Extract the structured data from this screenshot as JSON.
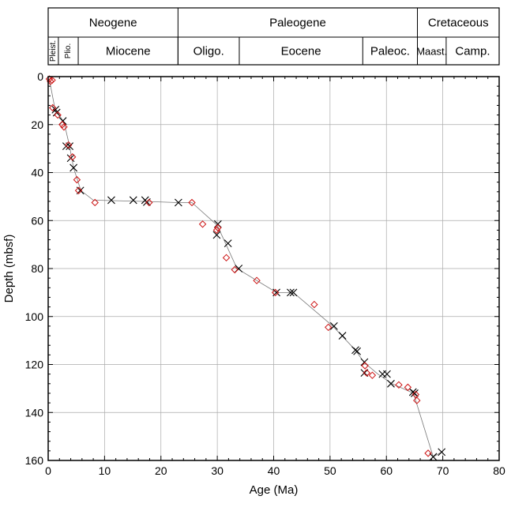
{
  "timescale": {
    "periods": [
      {
        "name": "Neogene",
        "start": 0,
        "end": 23.03
      },
      {
        "name": "Paleogene",
        "start": 23.03,
        "end": 65.5
      },
      {
        "name": "Cretaceous",
        "start": 65.5,
        "end": 80
      }
    ],
    "epochs": [
      {
        "name": "Pleist.",
        "start": 0,
        "end": 1.81,
        "vertical": true
      },
      {
        "name": "Plio.",
        "start": 1.81,
        "end": 5.33,
        "vertical": true
      },
      {
        "name": "Miocene",
        "start": 5.33,
        "end": 23.03
      },
      {
        "name": "Oligo.",
        "start": 23.03,
        "end": 33.9
      },
      {
        "name": "Eocene",
        "start": 33.9,
        "end": 55.8
      },
      {
        "name": "Paleoc.",
        "start": 55.8,
        "end": 65.5
      },
      {
        "name": "Maast.",
        "start": 65.5,
        "end": 70.6
      },
      {
        "name": "Camp.",
        "start": 70.6,
        "end": 80
      }
    ]
  },
  "chart_data": {
    "type": "scatter",
    "xlabel": "Age (Ma)",
    "ylabel": "Depth (mbsf)",
    "xlim": [
      0,
      80
    ],
    "ylim": [
      0,
      160
    ],
    "y_inverted": true,
    "grid": true,
    "xticks": [
      0,
      10,
      20,
      30,
      40,
      50,
      60,
      70,
      80
    ],
    "yticks": [
      0,
      20,
      40,
      60,
      80,
      100,
      120,
      140,
      160
    ],
    "colors": {
      "x_markers": "#000000",
      "diamond_markers": "#cc1111",
      "trend_line": "#777777"
    },
    "trend_line": [
      [
        0.2,
        1
      ],
      [
        1.2,
        13.5
      ],
      [
        2.8,
        19
      ],
      [
        3.8,
        29
      ],
      [
        4.5,
        38
      ],
      [
        5.8,
        47.5
      ],
      [
        8,
        51.5
      ],
      [
        17,
        52
      ],
      [
        23,
        52.5
      ],
      [
        25.5,
        52.5
      ],
      [
        30,
        62
      ],
      [
        33.5,
        80
      ],
      [
        40.5,
        90
      ],
      [
        43.5,
        90
      ],
      [
        50.5,
        104
      ],
      [
        54.5,
        114
      ],
      [
        56,
        119
      ],
      [
        58.5,
        124
      ],
      [
        61,
        128
      ],
      [
        64.8,
        132
      ],
      [
        68.3,
        158.5
      ],
      [
        69.8,
        156.5
      ]
    ],
    "series": [
      {
        "marker": "x",
        "points": [
          [
            1.3,
            13.8
          ],
          [
            1.5,
            15
          ],
          [
            2.6,
            18.5
          ],
          [
            3.2,
            29
          ],
          [
            3.8,
            29
          ],
          [
            4.0,
            34
          ],
          [
            4.5,
            38
          ],
          [
            5.7,
            47.5
          ],
          [
            11.2,
            51.5
          ],
          [
            15.1,
            51.5
          ],
          [
            17.2,
            51.5
          ],
          [
            17.5,
            52.3
          ],
          [
            23.1,
            52.5
          ],
          [
            30.1,
            61.5
          ],
          [
            29.9,
            66
          ],
          [
            31.9,
            69.5
          ],
          [
            33.8,
            80
          ],
          [
            40.5,
            90
          ],
          [
            43,
            90
          ],
          [
            43.5,
            90
          ],
          [
            50.7,
            104
          ],
          [
            52.2,
            108
          ],
          [
            54.5,
            114
          ],
          [
            54.8,
            114.5
          ],
          [
            56.1,
            119
          ],
          [
            56.1,
            123.5
          ],
          [
            59.3,
            124
          ],
          [
            60.1,
            124
          ],
          [
            60.8,
            128
          ],
          [
            64.7,
            131.5
          ],
          [
            65,
            132
          ],
          [
            68.3,
            158.5
          ],
          [
            69.8,
            156.5
          ]
        ]
      },
      {
        "marker": "diamond",
        "points": [
          [
            0.2,
            1
          ],
          [
            0.4,
            2
          ],
          [
            0.7,
            1.5
          ],
          [
            0.8,
            13
          ],
          [
            1.7,
            16
          ],
          [
            2.5,
            20
          ],
          [
            2.8,
            21
          ],
          [
            3.6,
            28.5
          ],
          [
            4.3,
            33.5
          ],
          [
            5.1,
            43
          ],
          [
            5.4,
            47.5
          ],
          [
            8.3,
            52.5
          ],
          [
            17.9,
            52.5
          ],
          [
            25.5,
            52.5
          ],
          [
            27.4,
            61.5
          ],
          [
            29.9,
            64
          ],
          [
            30.1,
            63
          ],
          [
            31.6,
            75.5
          ],
          [
            33.1,
            80.5
          ],
          [
            37,
            85
          ],
          [
            40.3,
            90
          ],
          [
            47.2,
            95
          ],
          [
            49.7,
            104.5
          ],
          [
            56.2,
            120.5
          ],
          [
            56.5,
            123.5
          ],
          [
            57.5,
            124.5
          ],
          [
            62.2,
            128.5
          ],
          [
            63.8,
            129.5
          ],
          [
            65.2,
            132.5
          ],
          [
            65.4,
            135
          ],
          [
            67.4,
            157
          ]
        ]
      }
    ]
  }
}
